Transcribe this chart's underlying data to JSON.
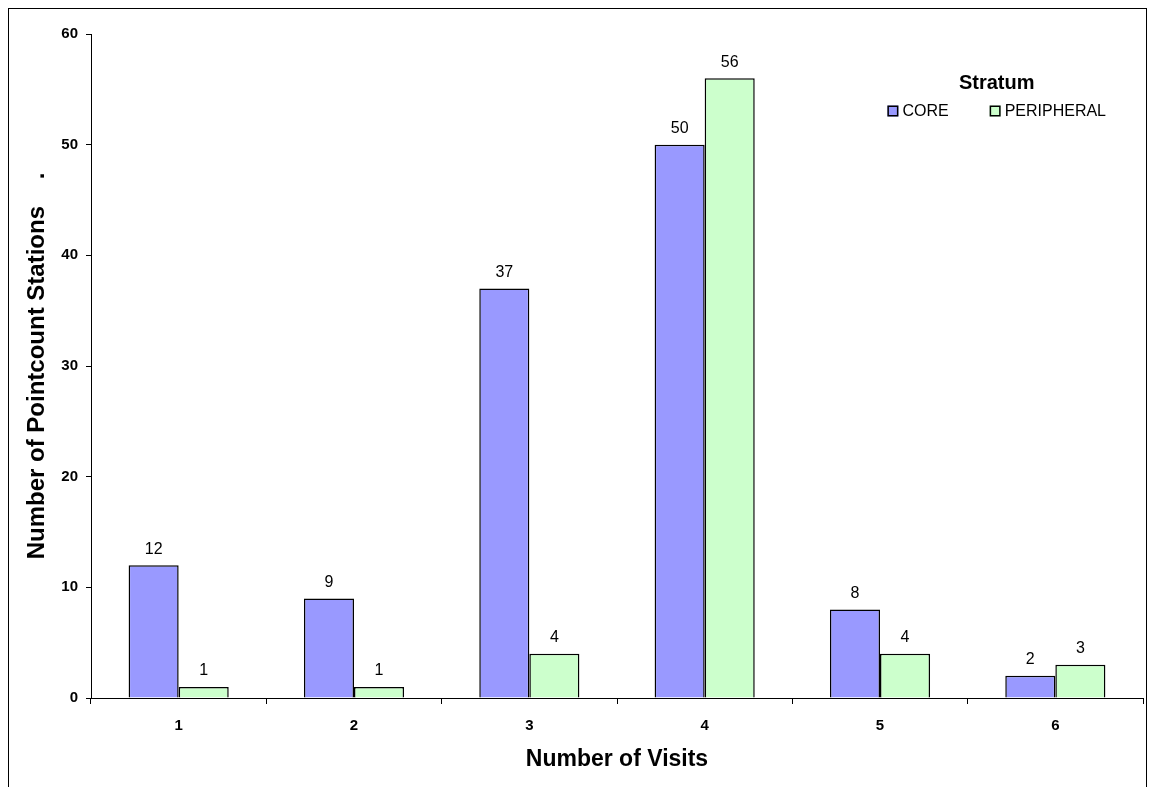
{
  "chart_data": {
    "type": "bar",
    "xlabel": "Number of Visits",
    "ylabel": "Number of Pointcount Stations    .",
    "legend_title": "Stratum",
    "categories": [
      "1",
      "2",
      "3",
      "4",
      "5",
      "6"
    ],
    "series": [
      {
        "name": "CORE",
        "color": "#9999ff",
        "values": [
          12,
          9,
          37,
          50,
          8,
          2
        ]
      },
      {
        "name": "PERIPHERAL",
        "color": "#ccffcc",
        "values": [
          1,
          1,
          4,
          56,
          4,
          3
        ]
      }
    ],
    "ylim": [
      0,
      60
    ],
    "yticks": [
      0,
      10,
      20,
      30,
      40,
      50,
      60
    ],
    "grid": false,
    "legend": "top right",
    "data_labels": true
  }
}
